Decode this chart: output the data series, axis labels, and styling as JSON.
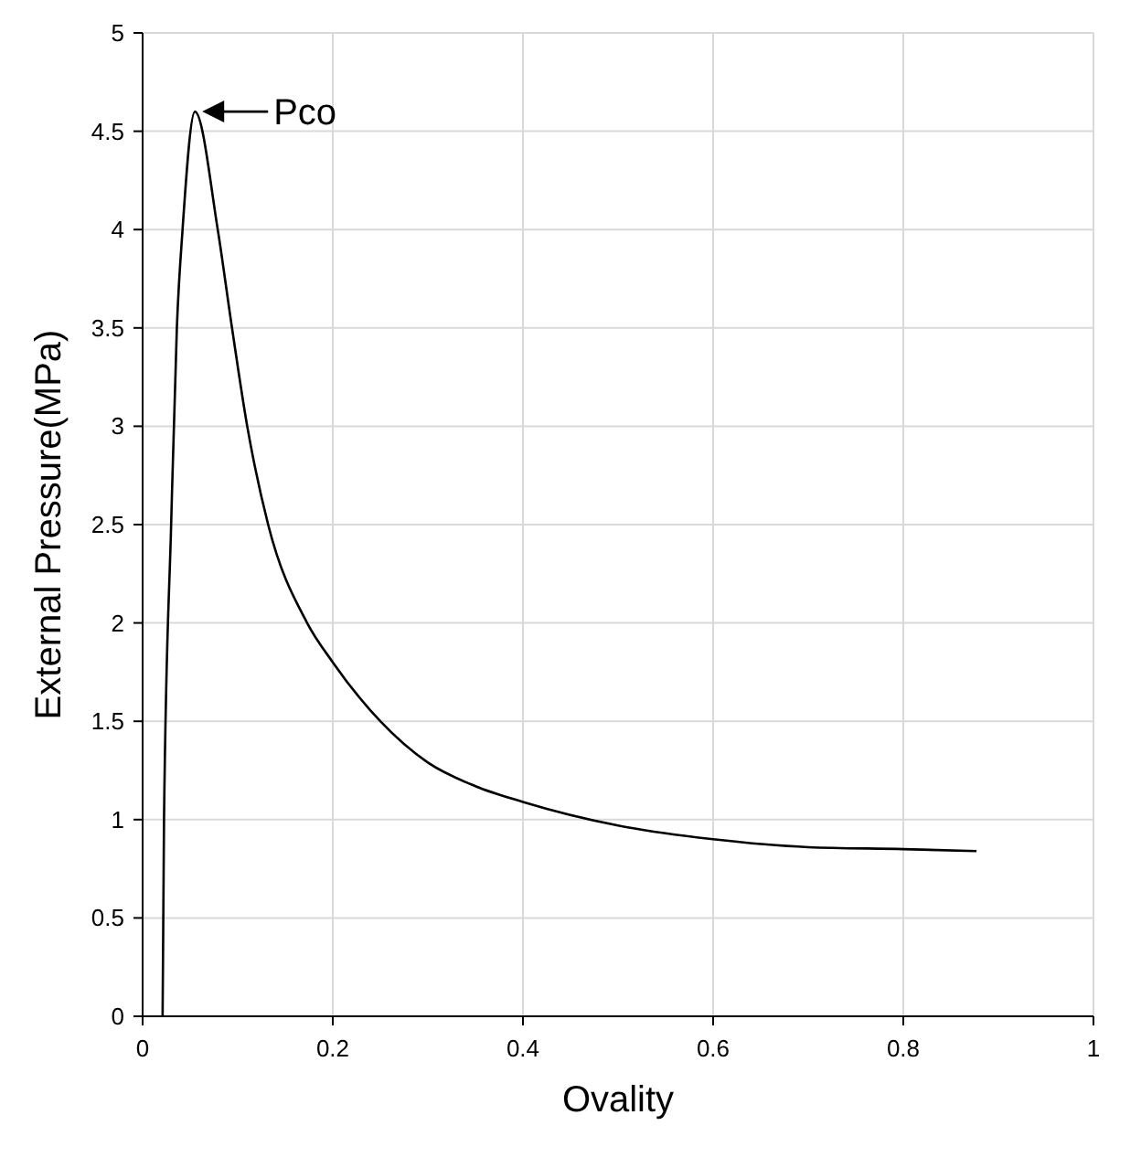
{
  "chart_data": {
    "type": "line",
    "xlabel": "Ovality",
    "ylabel": "External Pressure(MPa)",
    "x": [
      0.021,
      0.0225,
      0.03,
      0.036,
      0.042,
      0.055,
      0.079,
      0.094,
      0.11,
      0.132,
      0.173,
      0.2,
      0.25,
      0.3,
      0.35,
      0.4,
      0.5,
      0.6,
      0.7,
      0.8,
      0.877
    ],
    "series": [
      {
        "color": "#000000",
        "values": [
          0,
          1,
          2.5,
          3.5,
          4,
          4.6,
          4,
          3.5,
          3,
          2.5,
          2,
          1.8,
          1.5,
          1.29,
          1.17,
          1.09,
          0.97,
          0.9,
          0.86,
          0.85,
          0.84
        ]
      }
    ],
    "xlim": [
      0,
      1
    ],
    "ylim": [
      0,
      5
    ],
    "xticks": [
      0,
      0.2,
      0.4,
      0.6,
      0.8,
      1
    ],
    "yticks": [
      0,
      0.5,
      1,
      1.5,
      2,
      2.5,
      3,
      3.5,
      4,
      4.5,
      5
    ],
    "grid": true,
    "marker": "none",
    "line_style": "solid",
    "annotations": [
      {
        "text": "Pco",
        "x": 0.055,
        "y": 4.6
      }
    ]
  }
}
